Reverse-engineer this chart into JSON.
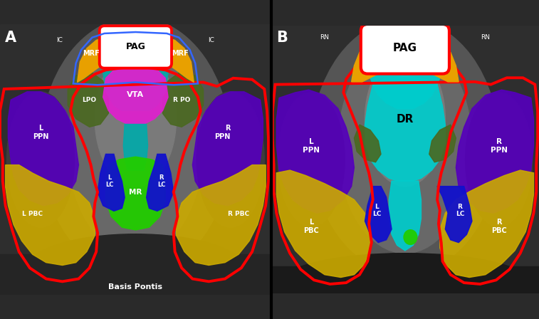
{
  "colors": {
    "PAG": "#ffffff",
    "MRF": "#e8a000",
    "PPN": "#5500bb",
    "LPO": "#4a6820",
    "VTA": "#dd22cc",
    "DR": "#00cccc",
    "MR": "#22cc00",
    "LC": "#1111cc",
    "PBC": "#ccaa00",
    "red": "#ff0000",
    "blue_outline": "#3366ff",
    "teal": "#00aaaa"
  },
  "panel_A": {
    "label": "A",
    "ic_left": "IC",
    "ic_right": "IC",
    "bottom_text": "Basis Pontis"
  },
  "panel_B": {
    "label": "B",
    "rn_left": "RN",
    "rn_right": "RN"
  }
}
